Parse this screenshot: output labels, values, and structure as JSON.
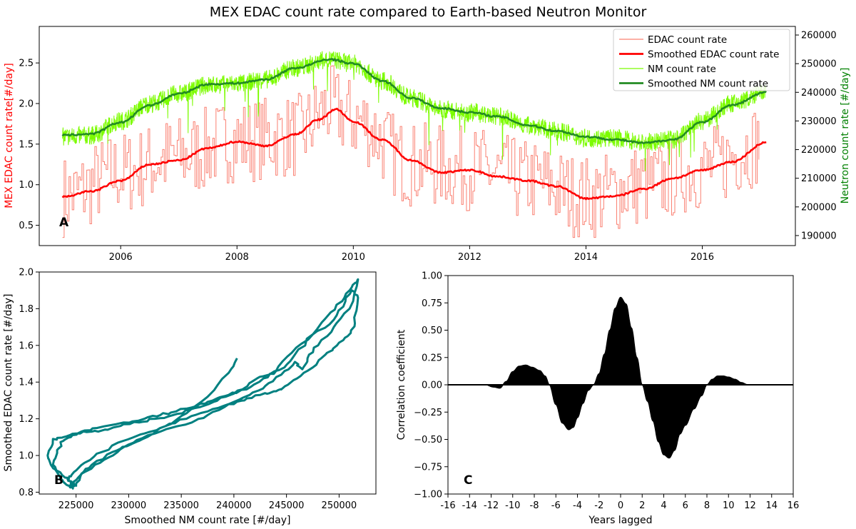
{
  "figure": {
    "title": "MEX EDAC count rate compared to Earth-based Neutron Monitor"
  },
  "chart_data": [
    {
      "id": "A",
      "type": "line",
      "panel_label": "A",
      "xlim": [
        2004.6,
        2017.6
      ],
      "x_ticks": [
        2006,
        2008,
        2010,
        2012,
        2014,
        2016
      ],
      "x_tick_labels": [
        "2006",
        "2008",
        "2010",
        "2012",
        "2014",
        "2016"
      ],
      "ylabel_left": "MEX EDAC count rate[#/day]",
      "ylabel_right": "Neutron count rate [#/day]",
      "ylim_left": [
        0.25,
        2.95
      ],
      "y_ticks_left": [
        0.5,
        1.0,
        1.5,
        2.0,
        2.5
      ],
      "y_tick_labels_left": [
        "0.5",
        "1.0",
        "1.5",
        "2.0",
        "2.5"
      ],
      "ylim_right": [
        186500,
        263000
      ],
      "y_ticks_right": [
        190000,
        200000,
        210000,
        220000,
        230000,
        240000,
        250000,
        260000
      ],
      "y_tick_labels_right": [
        "190000",
        "200000",
        "210000",
        "220000",
        "230000",
        "240000",
        "250000",
        "260000"
      ],
      "colors": {
        "left_label": "#ff0000",
        "right_label": "#008000"
      },
      "legend_position": "top-right",
      "series": [
        {
          "name": "EDAC count rate",
          "axis": "left",
          "color": "#fa8072",
          "style": "step-noisy",
          "x": [
            2005.0,
            2006.0,
            2007.0,
            2008.0,
            2009.0,
            2009.6,
            2010.0,
            2011.0,
            2012.0,
            2013.0,
            2014.0,
            2015.0,
            2016.0,
            2017.0
          ],
          "y": [
            0.85,
            1.15,
            1.35,
            1.55,
            1.6,
            1.95,
            1.8,
            1.25,
            1.2,
            1.05,
            0.85,
            1.0,
            1.2,
            1.5
          ]
        },
        {
          "name": "Smoothed EDAC count rate",
          "axis": "left",
          "color": "#ff0000",
          "style": "smooth",
          "x": [
            2005.0,
            2005.5,
            2006.0,
            2006.5,
            2007.0,
            2007.5,
            2008.0,
            2008.5,
            2009.0,
            2009.4,
            2009.7,
            2010.0,
            2010.5,
            2011.0,
            2011.5,
            2012.0,
            2012.5,
            2013.0,
            2013.5,
            2014.0,
            2014.5,
            2015.0,
            2015.5,
            2016.0,
            2016.5,
            2017.1
          ],
          "y": [
            0.85,
            0.92,
            1.05,
            1.25,
            1.3,
            1.45,
            1.53,
            1.48,
            1.62,
            1.8,
            1.93,
            1.78,
            1.55,
            1.3,
            1.15,
            1.18,
            1.1,
            1.05,
            0.98,
            0.83,
            0.86,
            0.95,
            1.08,
            1.18,
            1.28,
            1.52
          ]
        },
        {
          "name": "NM count rate",
          "axis": "right",
          "color": "#7cfc00",
          "style": "noisy",
          "x": [
            2005.0,
            2005.5,
            2006.0,
            2006.5,
            2007.0,
            2007.5,
            2008.0,
            2008.5,
            2009.0,
            2009.6,
            2010.0,
            2010.5,
            2011.0,
            2011.5,
            2012.0,
            2012.5,
            2013.0,
            2013.5,
            2014.0,
            2014.5,
            2015.0,
            2015.5,
            2016.0,
            2016.5,
            2017.1
          ],
          "y": [
            224500,
            225000,
            230000,
            236000,
            239500,
            242500,
            243000,
            244500,
            248500,
            251500,
            250000,
            244000,
            238000,
            234000,
            233000,
            231500,
            228500,
            226500,
            224000,
            224000,
            222500,
            223500,
            230000,
            236000,
            240000
          ]
        },
        {
          "name": "Smoothed NM count rate",
          "axis": "right",
          "color": "#228b22",
          "style": "smooth",
          "x": [
            2005.0,
            2005.5,
            2006.0,
            2006.5,
            2007.0,
            2007.5,
            2008.0,
            2008.5,
            2009.0,
            2009.6,
            2010.0,
            2010.5,
            2011.0,
            2011.5,
            2012.0,
            2012.5,
            2013.0,
            2013.5,
            2014.0,
            2014.5,
            2015.0,
            2015.5,
            2016.0,
            2016.5,
            2017.1
          ],
          "y": [
            225000,
            225500,
            229500,
            235500,
            239500,
            242800,
            243200,
            244500,
            248500,
            251500,
            250000,
            244000,
            238000,
            234500,
            233000,
            231500,
            228500,
            226500,
            224500,
            223500,
            222300,
            223500,
            229500,
            235500,
            240000
          ]
        }
      ]
    },
    {
      "id": "B",
      "type": "line",
      "panel_label": "B",
      "xlabel": "Smoothed NM count rate [#/day]",
      "ylabel": "Smoothed EDAC count rate [#/day]",
      "xlim": [
        221500,
        253500
      ],
      "ylim": [
        0.79,
        2.0
      ],
      "x_ticks": [
        225000,
        230000,
        235000,
        240000,
        245000,
        250000
      ],
      "x_tick_labels": [
        "225000",
        "230000",
        "235000",
        "240000",
        "245000",
        "250000"
      ],
      "y_ticks": [
        0.8,
        1.0,
        1.2,
        1.4,
        1.6,
        1.8,
        2.0
      ],
      "y_tick_labels": [
        "0.8",
        "1.0",
        "1.2",
        "1.4",
        "1.6",
        "1.8",
        "2.0"
      ],
      "colors": {
        "line": "#008080"
      },
      "series": [
        {
          "x": [
            225000,
            225500,
            226500,
            228500,
            229800,
            231000,
            232500,
            234000,
            236000,
            237500,
            239500,
            241000,
            242500,
            243800,
            244500,
            246000,
            247500,
            248700,
            249800,
            250800,
            251500,
            251800,
            251200,
            250600,
            249500,
            247500,
            245500,
            244000,
            242800,
            241200,
            239500,
            238000,
            236500,
            234500,
            233000,
            231500,
            229500,
            227000,
            225500,
            224500,
            223800,
            223200,
            222800,
            223600,
            224200,
            224900,
            224700,
            224500,
            224300,
            224800,
            225800,
            227500,
            229500,
            231500,
            233500,
            235500,
            237500,
            239500,
            241500,
            243000,
            244500,
            245800,
            246500,
            247000,
            248000,
            249500,
            251000,
            251800,
            251300,
            250500,
            249200,
            247500,
            245800,
            244800,
            243600,
            242200,
            240800,
            239200,
            237600,
            235800,
            234200,
            232500,
            231000,
            229500,
            228000,
            226500,
            225000,
            223800,
            222800,
            222300,
            222600,
            223400,
            224100,
            224600,
            225200,
            226800,
            228500,
            230000,
            231800,
            233500,
            235500,
            237500,
            239500,
            240300
          ],
          "y": [
            0.83,
            0.9,
            0.95,
            1.02,
            1.05,
            1.08,
            1.12,
            1.15,
            1.18,
            1.22,
            1.28,
            1.3,
            1.33,
            1.35,
            1.36,
            1.42,
            1.48,
            1.55,
            1.6,
            1.65,
            1.72,
            1.86,
            1.9,
            1.84,
            1.74,
            1.66,
            1.56,
            1.46,
            1.42,
            1.36,
            1.33,
            1.3,
            1.27,
            1.24,
            1.22,
            1.2,
            1.18,
            1.15,
            1.13,
            1.1,
            1.08,
            1.03,
            0.95,
            0.9,
            0.87,
            0.84,
            0.82,
            0.84,
            0.87,
            0.91,
            0.96,
            1.02,
            1.08,
            1.12,
            1.16,
            1.2,
            1.24,
            1.28,
            1.33,
            1.38,
            1.44,
            1.51,
            1.47,
            1.53,
            1.6,
            1.7,
            1.8,
            1.96,
            1.93,
            1.86,
            1.78,
            1.66,
            1.55,
            1.48,
            1.45,
            1.42,
            1.36,
            1.32,
            1.28,
            1.25,
            1.22,
            1.2,
            1.18,
            1.17,
            1.14,
            1.13,
            1.12,
            1.1,
            1.09,
            1.0,
            0.95,
            0.89,
            0.84,
            0.83,
            0.88,
            0.95,
            1.0,
            1.06,
            1.11,
            1.16,
            1.23,
            1.32,
            1.45,
            1.53
          ]
        }
      ]
    },
    {
      "id": "C",
      "type": "area",
      "panel_label": "C",
      "xlabel": "Years lagged",
      "ylabel": "Correlation coefficient",
      "xlim": [
        -16,
        16
      ],
      "ylim": [
        -1.0,
        1.0
      ],
      "x_ticks": [
        -16,
        -14,
        -12,
        -10,
        -8,
        -6,
        -4,
        -2,
        0,
        2,
        4,
        6,
        8,
        10,
        12,
        14,
        16
      ],
      "x_tick_labels": [
        "-16",
        "-14",
        "-12",
        "-10",
        "-8",
        "-6",
        "-4",
        "-2",
        "0",
        "2",
        "4",
        "6",
        "8",
        "10",
        "12",
        "14",
        "16"
      ],
      "y_ticks": [
        -1.0,
        -0.75,
        -0.5,
        -0.25,
        0.0,
        0.25,
        0.5,
        0.75,
        1.0
      ],
      "y_tick_labels": [
        "−1.00",
        "−0.75",
        "−0.50",
        "−0.25",
        "0.00",
        "0.25",
        "0.50",
        "0.75",
        "1.00"
      ],
      "colors": {
        "fill": "#000000"
      },
      "series": [
        {
          "x": [
            -16,
            -12.5,
            -11.8,
            -11.2,
            -10.6,
            -10.0,
            -9.4,
            -8.8,
            -8.2,
            -7.5,
            -7.0,
            -6.6,
            -6.0,
            -5.4,
            -4.8,
            -4.4,
            -4.0,
            -3.5,
            -3.0,
            -2.5,
            -2.0,
            -1.5,
            -1.0,
            -0.5,
            0.0,
            0.5,
            1.0,
            1.5,
            2.0,
            2.5,
            3.0,
            3.5,
            4.0,
            4.5,
            5.0,
            5.5,
            6.0,
            6.8,
            7.5,
            8.0,
            8.5,
            9.0,
            9.5,
            10.0,
            10.6,
            11.2,
            11.8,
            16
          ],
          "y": [
            0.0,
            0.0,
            -0.02,
            -0.03,
            0.03,
            0.12,
            0.17,
            0.18,
            0.16,
            0.13,
            0.08,
            0.0,
            -0.18,
            -0.35,
            -0.41,
            -0.39,
            -0.3,
            -0.17,
            -0.05,
            0.0,
            0.1,
            0.28,
            0.5,
            0.7,
            0.8,
            0.74,
            0.52,
            0.25,
            0.0,
            -0.15,
            -0.33,
            -0.52,
            -0.64,
            -0.67,
            -0.6,
            -0.45,
            -0.37,
            -0.22,
            -0.1,
            0.0,
            0.05,
            0.08,
            0.08,
            0.07,
            0.05,
            0.02,
            0.0,
            0.0
          ]
        }
      ]
    }
  ]
}
